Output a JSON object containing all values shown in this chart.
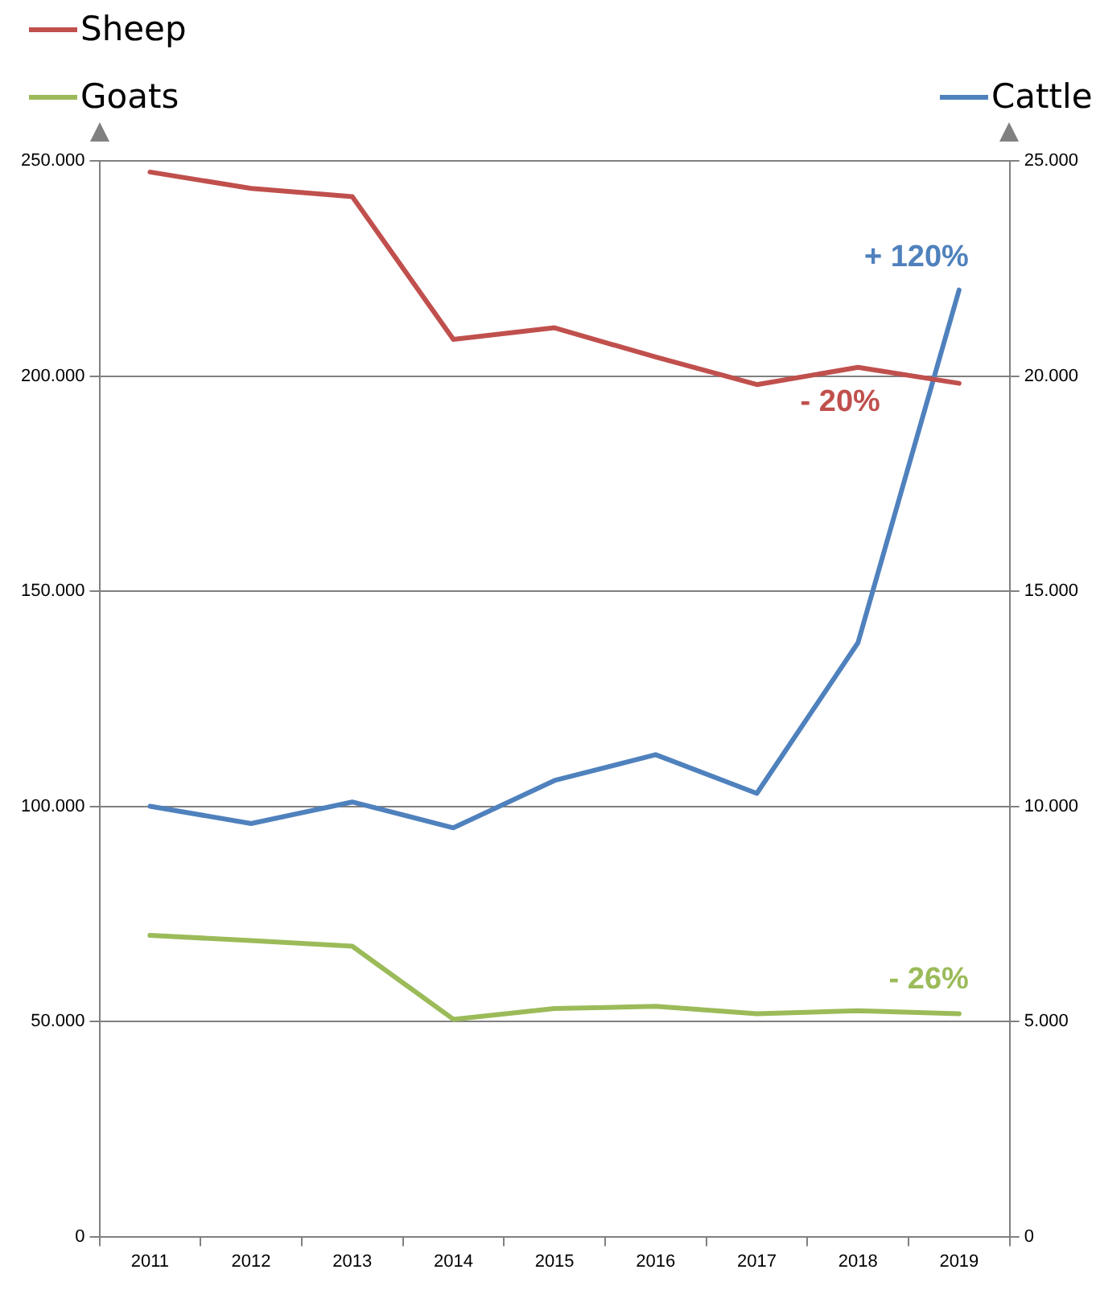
{
  "chart_data": {
    "type": "line",
    "categories": [
      "2011",
      "2012",
      "2013",
      "2014",
      "2015",
      "2016",
      "2017",
      "2018",
      "2019"
    ],
    "series": [
      {
        "name": "Sheep",
        "color": "#c0504d",
        "values": [
          247400,
          243600,
          241700,
          208500,
          211200,
          204400,
          198000,
          202000,
          198300
        ]
      },
      {
        "name": "Goats",
        "color": "#9bbb59",
        "values": [
          70000,
          68800,
          67500,
          50500,
          53000,
          53500,
          51800,
          52500,
          51800
        ]
      },
      {
        "name": "Cattle",
        "color": "#4f81bd",
        "axis": "y2",
        "values": [
          10000,
          9600,
          10100,
          9500,
          10600,
          11200,
          10300,
          13800,
          22000
        ]
      }
    ],
    "ylim": [
      0,
      250000
    ],
    "yticks": [
      {
        "value": 0,
        "label": "0"
      },
      {
        "value": 50000,
        "label": "50.000"
      },
      {
        "value": 100000,
        "label": "100.000"
      },
      {
        "value": 150000,
        "label": "150.000"
      },
      {
        "value": 200000,
        "label": "200.000"
      },
      {
        "value": 250000,
        "label": "250.000"
      }
    ],
    "y2lim": [
      0,
      25000
    ],
    "y2ticks": [
      {
        "value": 0,
        "label": "0"
      },
      {
        "value": 5000,
        "label": "5.000"
      },
      {
        "value": 10000,
        "label": "10.000"
      },
      {
        "value": 15000,
        "label": "15.000"
      },
      {
        "value": 20000,
        "label": "20.000"
      },
      {
        "value": 25000,
        "label": "25.000"
      }
    ],
    "annotations": [
      "+ 120%",
      "- 20%",
      "- 26%"
    ],
    "grid": "y",
    "legend": "top",
    "marker": "none",
    "line_style": "solid"
  }
}
